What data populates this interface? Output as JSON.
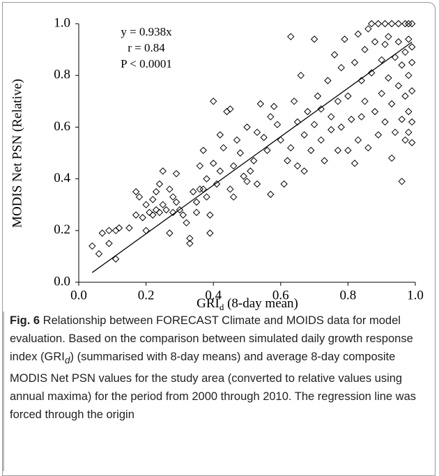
{
  "chart_data": {
    "type": "scatter",
    "y_label": "MODIS Net PSN (Relative)",
    "x_label": {
      "main": "GRI",
      "sub": "d",
      "rest": " (8-day mean)"
    },
    "annotations": [
      "y = 0.938x",
      "r = 0.84",
      "P < 0.0001"
    ],
    "xlim": [
      0,
      1
    ],
    "ylim": [
      0,
      1
    ],
    "xticks": [
      {
        "value": 0,
        "label": "0.0"
      },
      {
        "value": 0.2,
        "label": "0.2"
      },
      {
        "value": 0.4,
        "label": "0.4"
      },
      {
        "value": 0.6,
        "label": "0.6"
      },
      {
        "value": 0.8,
        "label": "0.8"
      },
      {
        "value": 1,
        "label": "1.0"
      }
    ],
    "yticks": [
      {
        "value": 0,
        "label": "0.0"
      },
      {
        "value": 0.2,
        "label": "0.2"
      },
      {
        "value": 0.4,
        "label": "0.4"
      },
      {
        "value": 0.6,
        "label": "0.6"
      },
      {
        "value": 0.8,
        "label": "0.8"
      },
      {
        "value": 1,
        "label": "1.0"
      }
    ],
    "grid": false,
    "fit_line": {
      "x": [
        0.04,
        0.99
      ],
      "values": [
        0.0375,
        0.929
      ],
      "color": "#000000"
    },
    "series": [
      {
        "color": "#000000",
        "x": [
          0.04,
          0.06,
          0.07,
          0.09,
          0.09,
          0.11,
          0.11,
          0.12,
          0.15,
          0.17,
          0.17,
          0.18,
          0.19,
          0.2,
          0.2,
          0.21,
          0.22,
          0.22,
          0.23,
          0.23,
          0.24,
          0.24,
          0.25,
          0.25,
          0.26,
          0.27,
          0.27,
          0.28,
          0.28,
          0.29,
          0.29,
          0.3,
          0.31,
          0.32,
          0.33,
          0.33,
          0.34,
          0.35,
          0.35,
          0.36,
          0.36,
          0.37,
          0.37,
          0.38,
          0.38,
          0.39,
          0.39,
          0.4,
          0.4,
          0.41,
          0.42,
          0.42,
          0.43,
          0.44,
          0.45,
          0.45,
          0.46,
          0.46,
          0.47,
          0.48,
          0.49,
          0.5,
          0.5,
          0.51,
          0.52,
          0.53,
          0.53,
          0.54,
          0.55,
          0.56,
          0.57,
          0.57,
          0.58,
          0.59,
          0.6,
          0.61,
          0.62,
          0.63,
          0.63,
          0.64,
          0.65,
          0.65,
          0.66,
          0.67,
          0.67,
          0.68,
          0.69,
          0.7,
          0.7,
          0.71,
          0.72,
          0.72,
          0.73,
          0.74,
          0.75,
          0.75,
          0.76,
          0.77,
          0.77,
          0.78,
          0.78,
          0.79,
          0.8,
          0.8,
          0.81,
          0.82,
          0.82,
          0.83,
          0.83,
          0.84,
          0.84,
          0.85,
          0.85,
          0.86,
          0.86,
          0.87,
          0.87,
          0.88,
          0.88,
          0.89,
          0.89,
          0.9,
          0.9,
          0.91,
          0.91,
          0.91,
          0.92,
          0.92,
          0.93,
          0.93,
          0.93,
          0.94,
          0.94,
          0.95,
          0.95,
          0.95,
          0.96,
          0.96,
          0.96,
          0.97,
          0.97,
          0.97,
          0.97,
          0.98,
          0.98,
          0.98,
          0.98,
          0.98,
          0.99,
          0.99,
          0.99,
          0.99,
          0.99,
          0.99
        ],
        "values": [
          0.14,
          0.11,
          0.19,
          0.15,
          0.2,
          0.09,
          0.2,
          0.21,
          0.21,
          0.26,
          0.35,
          0.33,
          0.25,
          0.2,
          0.3,
          0.27,
          0.26,
          0.32,
          0.28,
          0.35,
          0.27,
          0.38,
          0.43,
          0.3,
          0.28,
          0.36,
          0.19,
          0.27,
          0.33,
          0.42,
          0.31,
          0.28,
          0.26,
          0.23,
          0.17,
          0.15,
          0.35,
          0.31,
          0.27,
          0.36,
          0.45,
          0.51,
          0.36,
          0.4,
          0.33,
          0.26,
          0.19,
          0.7,
          0.46,
          0.38,
          0.57,
          0.43,
          0.52,
          0.66,
          0.67,
          0.36,
          0.33,
          0.45,
          0.55,
          0.5,
          0.41,
          0.39,
          0.6,
          0.43,
          0.47,
          0.58,
          0.38,
          0.69,
          0.56,
          0.51,
          0.34,
          0.64,
          0.68,
          0.61,
          0.55,
          0.38,
          0.47,
          0.95,
          0.52,
          0.7,
          0.62,
          0.45,
          0.8,
          0.57,
          0.43,
          0.66,
          0.51,
          0.94,
          0.61,
          0.72,
          0.55,
          0.67,
          0.47,
          0.78,
          0.64,
          0.59,
          0.88,
          0.7,
          0.51,
          0.83,
          0.6,
          0.94,
          0.72,
          0.51,
          0.63,
          0.46,
          0.85,
          0.55,
          0.96,
          0.78,
          0.64,
          0.9,
          0.7,
          0.52,
          0.98,
          1.0,
          0.81,
          0.93,
          0.66,
          1.0,
          0.57,
          0.86,
          0.73,
          1.0,
          0.92,
          0.62,
          0.79,
          0.95,
          1.0,
          0.48,
          0.69,
          0.87,
          0.58,
          1.0,
          0.76,
          0.93,
          0.63,
          0.84,
          0.39,
          1.0,
          0.72,
          0.89,
          0.55,
          1.0,
          0.8,
          0.94,
          0.66,
          0.58,
          1.0,
          0.85,
          0.74,
          0.54,
          0.62,
          0.91
        ]
      }
    ]
  },
  "caption": {
    "label": "Fig. 6",
    "text_before": " Relationship between FORECAST Climate and MOIDS data for model evaluation. Based on the comparison between simulated daily growth response index (GRI",
    "subscript": "d",
    "text_after": ") (summarised with 8-day means) and average 8-day composite MODIS Net PSN values for the study area (converted to relative values using annual maxima) for the period from 2000 through 2010. The regression line was forced through the origin"
  }
}
